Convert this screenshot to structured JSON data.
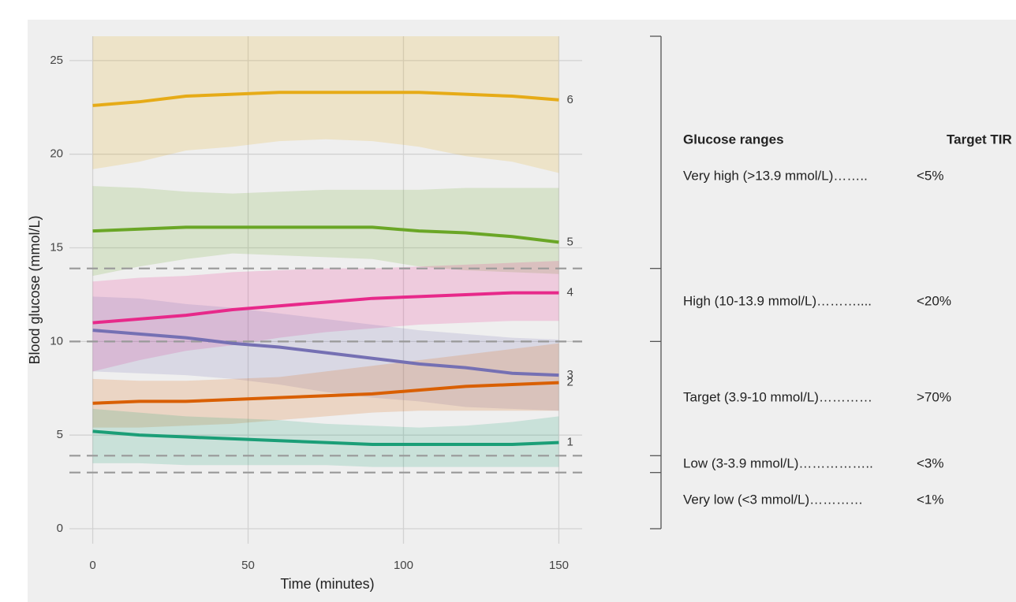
{
  "chart_data": {
    "type": "line",
    "x_label": "Time (minutes)",
    "y_label": "Blood glucose (mmol/L)",
    "x": [
      0,
      15,
      30,
      45,
      60,
      75,
      90,
      105,
      120,
      135,
      150
    ],
    "xlim": [
      -7.5,
      157.5
    ],
    "xticks": [
      0,
      50,
      100,
      150
    ],
    "ylim": [
      -0.8,
      26.3
    ],
    "yticks": [
      0,
      5,
      10,
      15,
      20,
      25
    ],
    "grid": true,
    "thresholds": [
      13.9,
      10,
      3.9,
      3
    ],
    "series": [
      {
        "name": "6",
        "color": "#e6ab17",
        "values": [
          22.6,
          22.8,
          23.1,
          23.2,
          23.3,
          23.3,
          23.3,
          23.3,
          23.2,
          23.1,
          22.9
        ],
        "lower": [
          19.2,
          19.6,
          20.2,
          20.4,
          20.7,
          20.8,
          20.7,
          20.4,
          19.9,
          19.6,
          19.0
        ],
        "upper": [
          26.3,
          26.3,
          26.3,
          26.3,
          26.3,
          26.3,
          26.3,
          26.3,
          26.3,
          26.3,
          26.3
        ]
      },
      {
        "name": "5",
        "color": "#6aa626",
        "values": [
          15.9,
          16.0,
          16.1,
          16.1,
          16.1,
          16.1,
          16.1,
          15.9,
          15.8,
          15.6,
          15.3
        ],
        "lower": [
          13.5,
          14.0,
          14.4,
          14.7,
          14.6,
          14.5,
          14.4,
          14.0,
          13.8,
          13.7,
          13.6
        ],
        "upper": [
          18.3,
          18.2,
          18.0,
          17.9,
          18.0,
          18.1,
          18.1,
          18.1,
          18.2,
          18.2,
          18.2
        ]
      },
      {
        "name": "4",
        "color": "#e7298a",
        "values": [
          11.0,
          11.2,
          11.4,
          11.7,
          11.9,
          12.1,
          12.3,
          12.4,
          12.5,
          12.6,
          12.6
        ],
        "lower": [
          8.4,
          9.0,
          9.5,
          9.8,
          10.2,
          10.5,
          10.7,
          10.9,
          11.0,
          11.1,
          11.1
        ],
        "upper": [
          13.2,
          13.4,
          13.5,
          13.7,
          13.8,
          13.9,
          13.9,
          14.0,
          14.1,
          14.2,
          14.3
        ]
      },
      {
        "name": "3",
        "color": "#7570b3",
        "values": [
          10.6,
          10.4,
          10.2,
          9.9,
          9.7,
          9.4,
          9.1,
          8.8,
          8.6,
          8.3,
          8.2
        ],
        "lower": [
          8.4,
          8.3,
          8.2,
          8.0,
          7.7,
          7.3,
          7.0,
          6.8,
          6.5,
          6.4,
          6.3
        ],
        "upper": [
          12.4,
          12.3,
          12.0,
          11.8,
          11.5,
          11.2,
          10.9,
          10.6,
          10.4,
          10.2,
          10.1
        ]
      },
      {
        "name": "2",
        "color": "#d95f02",
        "values": [
          6.7,
          6.8,
          6.8,
          6.9,
          7.0,
          7.1,
          7.2,
          7.4,
          7.6,
          7.7,
          7.8
        ],
        "lower": [
          5.4,
          5.4,
          5.5,
          5.6,
          5.8,
          6.0,
          6.2,
          6.3,
          6.3,
          6.3,
          6.3
        ],
        "upper": [
          8.0,
          7.9,
          7.9,
          8.0,
          8.1,
          8.4,
          8.7,
          9.0,
          9.3,
          9.6,
          9.9
        ]
      },
      {
        "name": "1",
        "color": "#1b9e77",
        "values": [
          5.2,
          5.0,
          4.9,
          4.8,
          4.7,
          4.6,
          4.5,
          4.5,
          4.5,
          4.5,
          4.6
        ],
        "lower": [
          3.5,
          3.5,
          3.4,
          3.4,
          3.4,
          3.4,
          3.3,
          3.3,
          3.3,
          3.3,
          3.3
        ],
        "upper": [
          6.4,
          6.2,
          6.0,
          5.9,
          5.8,
          5.6,
          5.5,
          5.4,
          5.5,
          5.7,
          6.0
        ]
      }
    ],
    "table": {
      "header": [
        "Glucose ranges",
        "Target TIR"
      ],
      "rows": [
        [
          "Very high (>13.9 mmol/L)……..",
          "<5%"
        ],
        [
          "High (10-13.9 mmol/L)………....",
          "<20%"
        ],
        [
          "Target (3.9-10 mmol/L)…………",
          ">70%"
        ],
        [
          "Low (3-3.9 mmol/L)……………..",
          "<3%"
        ],
        [
          "Very low (<3 mmol/L)…………",
          "<1%"
        ]
      ]
    }
  }
}
